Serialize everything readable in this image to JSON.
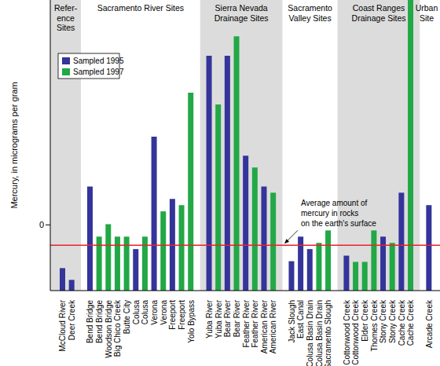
{
  "chart_data": {
    "type": "bar",
    "ylabel": "Mercury, in micrograms per gram",
    "categories": [
      "McCloud River",
      "Deer Creek",
      null,
      "Bend Bridge",
      "Bend Bridge",
      "Woodson Bridge",
      "Big Chico Creek",
      "Butte City",
      "Colusa",
      "Colusa",
      "Verona",
      "Verona",
      "Freeport",
      "Freeport",
      "Yolo Bypass",
      null,
      "Yuba River",
      "Yuba River",
      "Bear River",
      "Bear River",
      "Feather River",
      "Feather River",
      "American River",
      "American River",
      null,
      "Jack Slough",
      "East Canal",
      "Colusa Basin Drain",
      "Colusa Basin Drain",
      "Sacramento Slough",
      null,
      "Cottonwood Creek",
      "Cottonwood Creek",
      "Elder Creek",
      "Thomes Creek",
      "Stony Creek",
      "Stony Creek",
      "Cache Creek",
      "Cache Creek",
      null,
      "Arcade Creek"
    ],
    "series": [
      {
        "name": "Sampled 1995",
        "color": "#34349a",
        "values": [
          -1.25,
          -1.59,
          null,
          1.11,
          null,
          null,
          null,
          null,
          -0.7,
          null,
          2.55,
          null,
          0.75,
          null,
          null,
          null,
          4.89,
          null,
          4.89,
          null,
          2.0,
          null,
          1.11,
          null,
          null,
          -1.05,
          -0.34,
          -0.7,
          null,
          null,
          null,
          -0.89,
          null,
          null,
          null,
          -0.34,
          null,
          0.93,
          null,
          null,
          0.57
        ]
      },
      {
        "name": "Sampled 1997",
        "color": "#22a846",
        "values": [
          null,
          null,
          null,
          null,
          -0.34,
          0.02,
          -0.34,
          -0.34,
          null,
          -0.34,
          null,
          0.39,
          null,
          0.57,
          3.82,
          null,
          null,
          3.48,
          null,
          5.45,
          null,
          1.66,
          null,
          0.93,
          null,
          null,
          null,
          null,
          -0.52,
          -0.16,
          null,
          null,
          -1.07,
          -1.07,
          -0.16,
          null,
          -0.52,
          null,
          6.5,
          null,
          null
        ]
      }
    ],
    "ylim": [
      -1.9,
      6.5
    ],
    "yticks": [
      0
    ],
    "grid": false,
    "legend": "upper left",
    "groups": [
      {
        "label": [
          "Refer-",
          "ence",
          "Sites"
        ]
      },
      {
        "label": [
          "Sacramento River Sites"
        ]
      },
      {
        "label": [
          "Sierra Nevada",
          "Drainage Sites"
        ]
      },
      {
        "label": [
          "Sacramento",
          "Valley Sites"
        ]
      },
      {
        "label": [
          "Coast Ranges",
          "Drainage Sites"
        ]
      },
      {
        "label": [
          "Urban",
          "Site"
        ]
      }
    ],
    "annotations": [
      {
        "text": [
          "Average amount of",
          "mercury in rocks",
          "on the earth's surface"
        ],
        "y": -0.59,
        "color": "#e8222a"
      }
    ]
  }
}
